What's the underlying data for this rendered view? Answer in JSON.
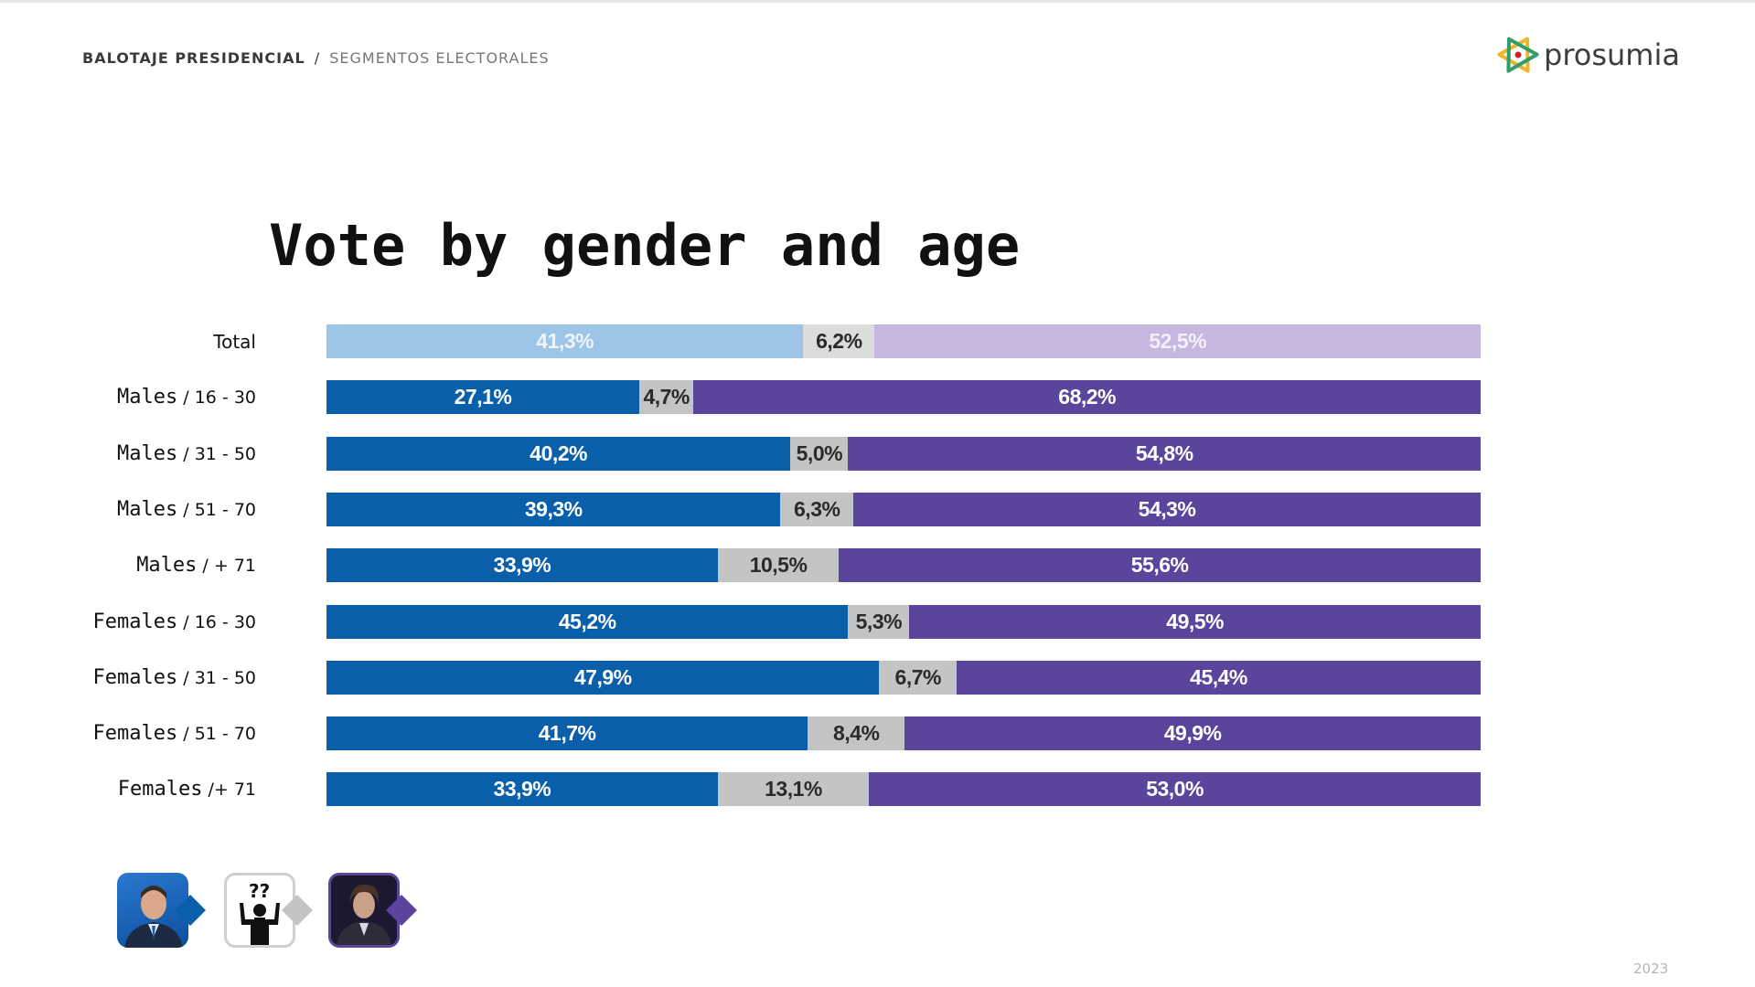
{
  "header": {
    "breadcrumb_main": "BALOTAJE PRESIDENCIAL",
    "breadcrumb_sep": "/",
    "breadcrumb_sub": "SEGMENTOS ELECTORALES",
    "logo_text": "prosumia",
    "logo_icon": "atom-icon"
  },
  "footer": {
    "year": "2023"
  },
  "legend": [
    {
      "name": "candidate-massa",
      "icon": "candidate-portrait-icon",
      "color": "#0a5fab"
    },
    {
      "name": "undecided",
      "icon": "question-person-icon",
      "color": "#c4c4c4"
    },
    {
      "name": "candidate-milei",
      "icon": "candidate-portrait-icon",
      "color": "#5b449c"
    }
  ],
  "colors": {
    "blue": "#0a5fab",
    "gray": "#c4c4c4",
    "purple": "#5b449c",
    "total_blue": "#9dc5e7",
    "total_gray": "#dcdcdc",
    "total_purple": "#c6b7e1"
  },
  "chart_data": {
    "type": "bar",
    "orientation": "horizontal",
    "stacked": true,
    "title": "Vote by gender and age",
    "xlabel": "",
    "ylabel": "",
    "xlim": [
      0,
      100
    ],
    "grid": false,
    "legend_placement": "bottom-left",
    "categories": [
      {
        "group": "Total",
        "age": ""
      },
      {
        "group": "Males",
        "age": "/ 16 - 30"
      },
      {
        "group": "Males",
        "age": "/ 31 - 50"
      },
      {
        "group": "Males",
        "age": "/ 51 - 70"
      },
      {
        "group": "Males",
        "age": "/ + 71"
      },
      {
        "group": "Females",
        "age": "/ 16 - 30"
      },
      {
        "group": "Females",
        "age": "/ 31 - 50"
      },
      {
        "group": "Females",
        "age": "/ 51 - 70"
      },
      {
        "group": "Females",
        "age": "/+ 71"
      }
    ],
    "series": [
      {
        "name": "blue-candidate",
        "values": [
          41.3,
          27.1,
          40.2,
          39.3,
          33.9,
          45.2,
          47.9,
          41.7,
          33.9
        ],
        "labels": [
          "41,3%",
          "27,1%",
          "40,2%",
          "39,3%",
          "33,9%",
          "45,2%",
          "47,9%",
          "41,7%",
          "33,9%"
        ]
      },
      {
        "name": "undecided",
        "values": [
          6.2,
          4.7,
          5.0,
          6.3,
          10.5,
          5.3,
          6.7,
          8.4,
          13.1
        ],
        "labels": [
          "6,2%",
          "4,7%",
          "5,0%",
          "6,3%",
          "10,5%",
          "5,3%",
          "6,7%",
          "8,4%",
          "13,1%"
        ]
      },
      {
        "name": "purple-candidate",
        "values": [
          52.5,
          68.2,
          54.8,
          54.3,
          55.6,
          49.5,
          45.4,
          49.9,
          53.0
        ],
        "labels": [
          "52,5%",
          "68,2%",
          "54,8%",
          "54,3%",
          "55,6%",
          "49,5%",
          "45,4%",
          "49,9%",
          "53,0%"
        ]
      }
    ]
  }
}
